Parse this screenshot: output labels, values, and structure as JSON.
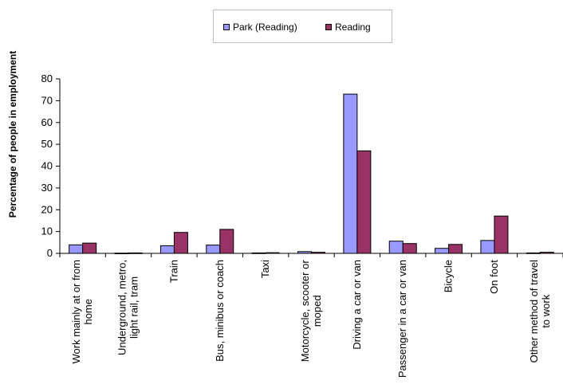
{
  "chart_data": {
    "type": "bar",
    "title": "",
    "xlabel": "",
    "ylabel": "Percentage of people in employment",
    "ylim": [
      0,
      80
    ],
    "yticks": [
      0,
      10,
      20,
      30,
      40,
      50,
      60,
      70,
      80
    ],
    "grid": false,
    "legend_position": "top-center",
    "categories": [
      [
        "Work mainly at or from",
        "home"
      ],
      [
        "Underground, metro,",
        "light rail, tram"
      ],
      [
        "Train"
      ],
      [
        "Bus, minibus or coach"
      ],
      [
        "Taxi"
      ],
      [
        "Motorcycle, scooter or",
        "moped"
      ],
      [
        "Driving a car or van"
      ],
      [
        "Passenger in a car or van"
      ],
      [
        "Bicycle"
      ],
      [
        "On foot"
      ],
      [
        "Other method of travel",
        "to work"
      ]
    ],
    "series": [
      {
        "name": "Park (Reading)",
        "color": "#9999ff",
        "values": [
          3.9,
          0.1,
          3.5,
          3.8,
          0.2,
          0.8,
          73.0,
          5.6,
          2.3,
          5.9,
          0.2
        ]
      },
      {
        "name": "Reading",
        "color": "#993366",
        "values": [
          4.7,
          0.2,
          9.6,
          11.0,
          0.3,
          0.5,
          47.0,
          4.5,
          4.1,
          17.1,
          0.5
        ]
      }
    ]
  }
}
